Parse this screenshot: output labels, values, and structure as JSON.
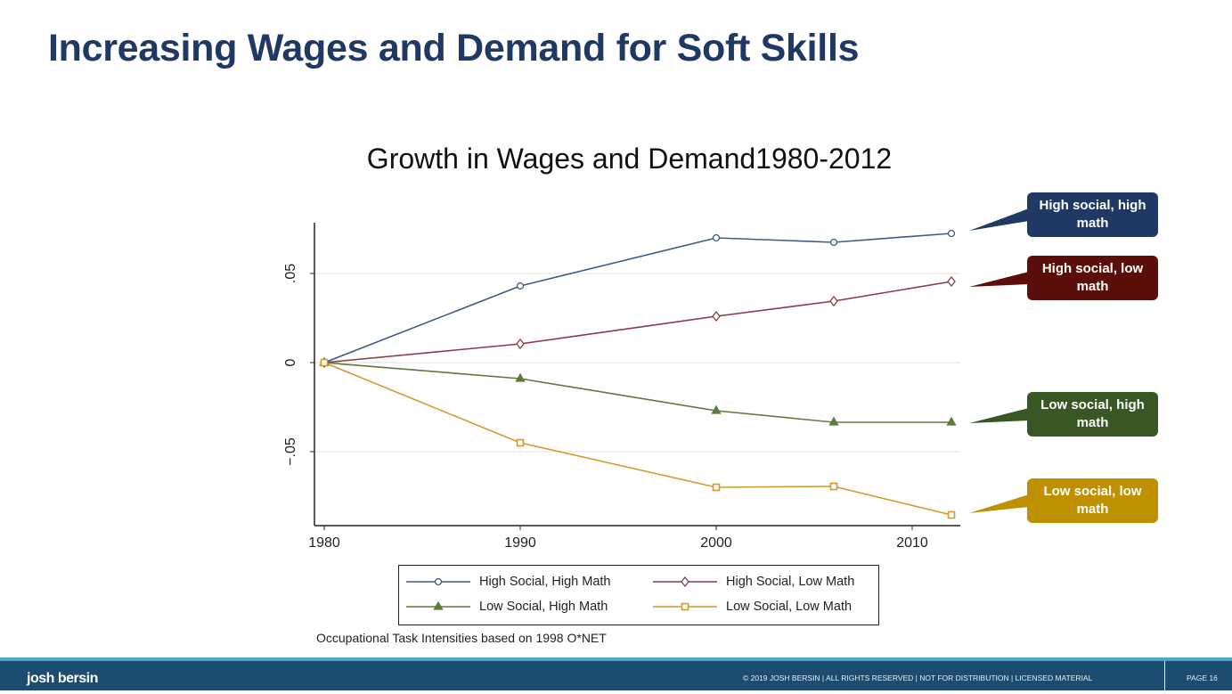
{
  "slide": {
    "title": "Increasing Wages and Demand for Soft Skills",
    "note": "Occupational Task Intensities based on 1998 O*NET",
    "footer": {
      "logo": "josh bersin",
      "copyright": "© 2019 JOSH BERSIN | ALL RIGHTS RESERVED | NOT FOR DISTRIBUTION | LICENSED MATERIAL",
      "page": "PAGE  16"
    },
    "callouts": [
      {
        "text": "High social, high math",
        "color": "#1f3864"
      },
      {
        "text": "High social, low math",
        "color": "#5c0f0a"
      },
      {
        "text": "Low social, high math",
        "color": "#385723"
      },
      {
        "text": "Low social, low math",
        "color": "#bf9000"
      }
    ]
  },
  "chart_data": {
    "type": "line",
    "title": "Growth in Wages and Demand1980-2012",
    "xlabel": "",
    "ylabel": "",
    "x": [
      1980,
      1990,
      2000,
      2006,
      2012
    ],
    "xticks": [
      "1980",
      "1990",
      "2000",
      "2010"
    ],
    "yticks": [
      "−.05",
      "0",
      ".05"
    ],
    "xlim": [
      1979.5,
      2012.5
    ],
    "ylim": [
      -0.0915,
      0.0785
    ],
    "grid": true,
    "legend": "bottom",
    "series": [
      {
        "name": "High Social, High Math",
        "color": "#3e5a86",
        "marker": "circle",
        "values": [
          0,
          0.043,
          0.07,
          0.0675,
          0.0725
        ]
      },
      {
        "name": "High Social, Low Math",
        "color": "#8a3b45",
        "marker": "diamond",
        "values": [
          0,
          0.0105,
          0.026,
          0.0345,
          0.0455
        ]
      },
      {
        "name": "Low Social, High Math",
        "color": "#5d7a3a",
        "marker": "triangle",
        "values": [
          0,
          -0.009,
          -0.027,
          -0.0335,
          -0.0335
        ]
      },
      {
        "name": "Low Social, Low Math",
        "color": "#d39a2a",
        "marker": "square",
        "values": [
          0,
          -0.045,
          -0.07,
          -0.0695,
          -0.0855
        ]
      }
    ]
  }
}
